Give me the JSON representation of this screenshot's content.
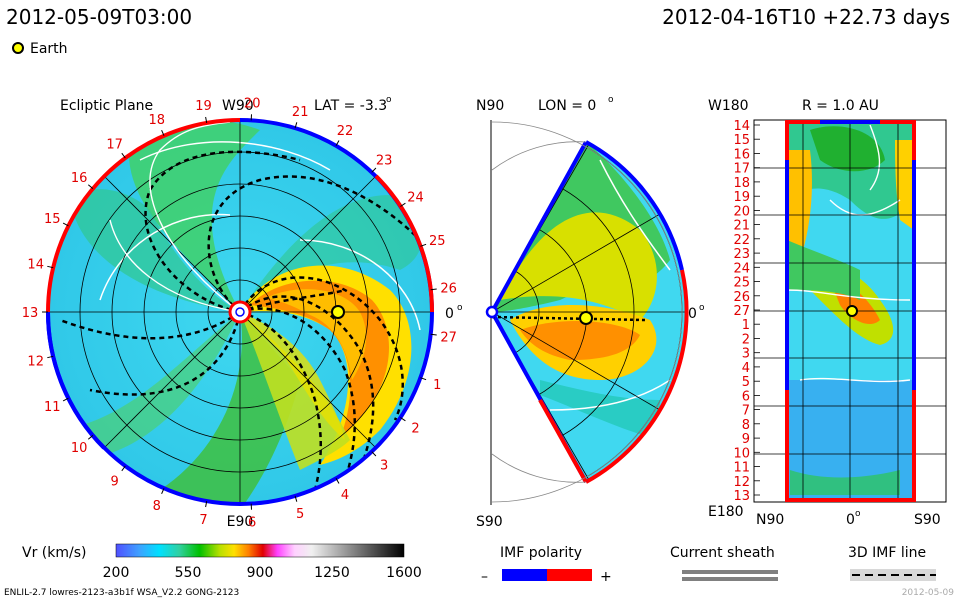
{
  "header": {
    "left_time": "2012-05-09T03:00",
    "right_time": "2012-04-16T10 +22.73 days"
  },
  "legend": {
    "earth_label": "Earth",
    "earth_color": "#ffff00"
  },
  "panels": {
    "ecliptic": {
      "title": "Ecliptic Plane",
      "lat_label": "LAT = -3.3",
      "top_label": "W90",
      "bottom_label": "E90",
      "right_label": "0",
      "rot_numbers": [
        "19",
        "20",
        "21",
        "22",
        "23",
        "24",
        "25",
        "26",
        "27",
        "1",
        "2",
        "3",
        "4",
        "5",
        "6",
        "7",
        "8",
        "9",
        "10",
        "11",
        "12",
        "13",
        "14",
        "15",
        "16",
        "17",
        "18"
      ]
    },
    "meridional": {
      "top_label": "N90",
      "lon_label": "LON = 0",
      "bottom_label": "S90",
      "right_label": "0"
    },
    "sphere": {
      "top_label": "W180",
      "r_label": "R = 1.0 AU",
      "bottom_left": "E180",
      "x_labels": [
        "N90",
        "0",
        "S90"
      ],
      "rot_numbers": [
        "14",
        "15",
        "16",
        "17",
        "18",
        "19",
        "20",
        "21",
        "22",
        "23",
        "24",
        "25",
        "26",
        "27",
        "1",
        "2",
        "3",
        "4",
        "5",
        "6",
        "7",
        "8",
        "9",
        "10",
        "11",
        "12",
        "13"
      ]
    }
  },
  "colorbar": {
    "label": "Vr (km/s)",
    "ticks": [
      "200",
      "550",
      "900",
      "1250",
      "1600"
    ]
  },
  "imf": {
    "label": "IMF polarity",
    "minus": "–",
    "plus": "+",
    "negative_color": "#0000ff",
    "positive_color": "#ff0000"
  },
  "current_sheath": {
    "label": "Current sheath"
  },
  "imf_line": {
    "label": "3D IMF line"
  },
  "footer": {
    "left": "ENLIL-2.7 lowres-2123-a3b1f WSA_V2.2 GONG-2123",
    "right": "2012-05-09"
  },
  "chart_data": [
    {
      "type": "heatmap",
      "title": "Ecliptic Plane",
      "annotations": [
        "LAT = -3.3",
        "W90",
        "E90",
        "0"
      ],
      "quantity": "Vr (km/s)",
      "earth": {
        "lon_deg": 0,
        "r_au": 1.0
      }
    },
    {
      "type": "heatmap",
      "title": "LON = 0",
      "annotations": [
        "N90",
        "S90",
        "0"
      ],
      "quantity": "Vr (km/s)"
    },
    {
      "type": "heatmap",
      "title": "R = 1.0 AU",
      "annotations": [
        "W180",
        "E180"
      ],
      "xticks": [
        "N90",
        "0",
        "S90"
      ],
      "quantity": "Vr (km/s)"
    }
  ]
}
